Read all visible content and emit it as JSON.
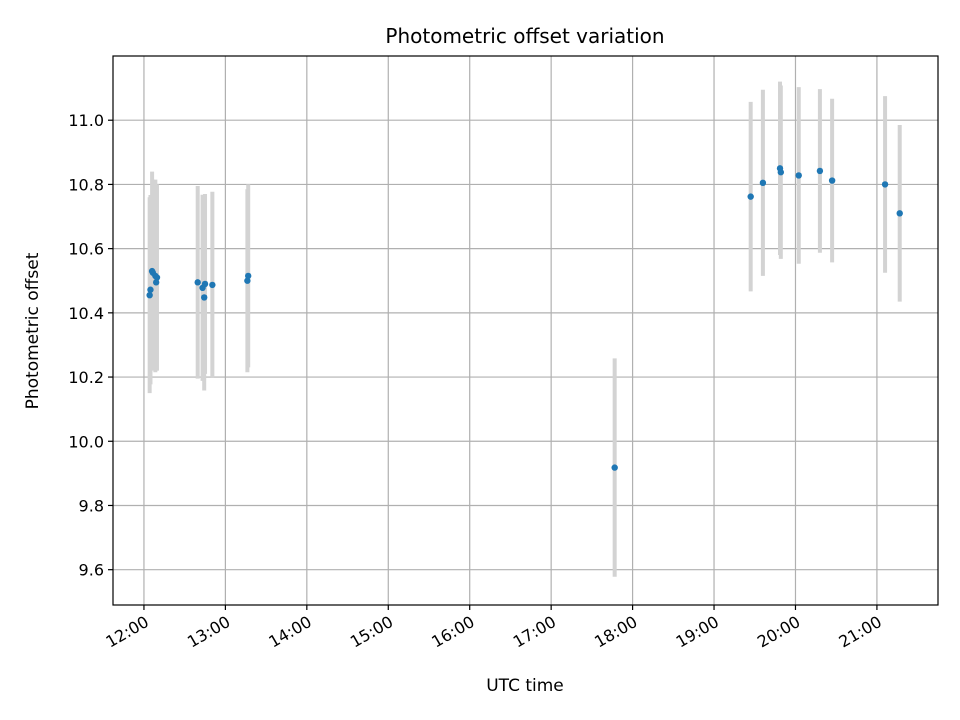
{
  "chart_data": {
    "type": "scatter",
    "title": "Photometric offset variation",
    "xlabel": "UTC time",
    "ylabel": "Photometric offset",
    "grid": true,
    "xlim": [
      11.62,
      21.75
    ],
    "ylim": [
      9.49,
      11.2
    ],
    "x_ticks": [
      {
        "value": 12,
        "label": "12:00"
      },
      {
        "value": 13,
        "label": "13:00"
      },
      {
        "value": 14,
        "label": "14:00"
      },
      {
        "value": 15,
        "label": "15:00"
      },
      {
        "value": 16,
        "label": "16:00"
      },
      {
        "value": 17,
        "label": "17:00"
      },
      {
        "value": 18,
        "label": "18:00"
      },
      {
        "value": 19,
        "label": "19:00"
      },
      {
        "value": 20,
        "label": "20:00"
      },
      {
        "value": 21,
        "label": "21:00"
      }
    ],
    "y_ticks": [
      {
        "value": 9.6,
        "label": "9.6"
      },
      {
        "value": 9.8,
        "label": "9.8"
      },
      {
        "value": 10.0,
        "label": "10.0"
      },
      {
        "value": 10.2,
        "label": "10.2"
      },
      {
        "value": 10.4,
        "label": "10.4"
      },
      {
        "value": 10.6,
        "label": "10.6"
      },
      {
        "value": 10.8,
        "label": "10.8"
      },
      {
        "value": 11.0,
        "label": "11.0"
      }
    ],
    "colors": {
      "point": "#1f77b4",
      "errorbar": "#d3d3d3",
      "grid": "#b0b0b0"
    },
    "points": [
      {
        "x": 12.07,
        "y": 10.455,
        "err": 0.305
      },
      {
        "x": 12.08,
        "y": 10.472,
        "err": 0.295
      },
      {
        "x": 12.1,
        "y": 10.53,
        "err": 0.31
      },
      {
        "x": 12.11,
        "y": 10.525,
        "err": 0.29
      },
      {
        "x": 12.14,
        "y": 10.515,
        "err": 0.3
      },
      {
        "x": 12.15,
        "y": 10.495,
        "err": 0.275
      },
      {
        "x": 12.16,
        "y": 10.51,
        "err": 0.29
      },
      {
        "x": 12.66,
        "y": 10.495,
        "err": 0.3
      },
      {
        "x": 12.72,
        "y": 10.478,
        "err": 0.29
      },
      {
        "x": 12.74,
        "y": 10.448,
        "err": 0.29
      },
      {
        "x": 12.75,
        "y": 10.49,
        "err": 0.28
      },
      {
        "x": 12.84,
        "y": 10.487,
        "err": 0.29
      },
      {
        "x": 13.27,
        "y": 10.5,
        "err": 0.285
      },
      {
        "x": 13.28,
        "y": 10.515,
        "err": 0.285
      },
      {
        "x": 17.78,
        "y": 9.918,
        "err": 0.34
      },
      {
        "x": 19.45,
        "y": 10.762,
        "err": 0.295
      },
      {
        "x": 19.6,
        "y": 10.805,
        "err": 0.29
      },
      {
        "x": 19.81,
        "y": 10.85,
        "err": 0.27
      },
      {
        "x": 19.82,
        "y": 10.838,
        "err": 0.27
      },
      {
        "x": 20.04,
        "y": 10.828,
        "err": 0.275
      },
      {
        "x": 20.3,
        "y": 10.842,
        "err": 0.255
      },
      {
        "x": 20.45,
        "y": 10.812,
        "err": 0.255
      },
      {
        "x": 21.1,
        "y": 10.8,
        "err": 0.275
      },
      {
        "x": 21.28,
        "y": 10.71,
        "err": 0.275
      }
    ]
  }
}
